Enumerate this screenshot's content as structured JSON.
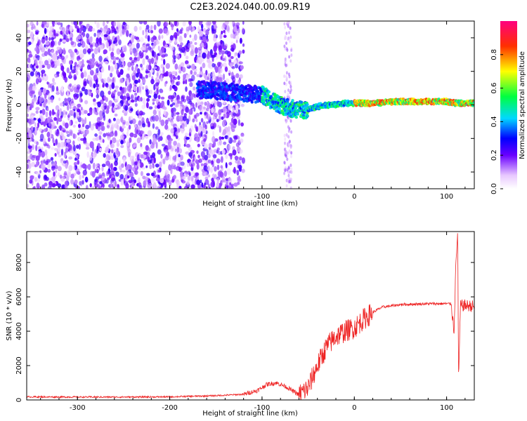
{
  "title": "C2E3.2024.040.00.09.R19",
  "colors": {
    "snr_line": "#ee2222",
    "axis": "#000000",
    "background": "#ffffff"
  },
  "chart_data": [
    {
      "type": "heatmap",
      "xlabel": "Height of straight line (km)",
      "ylabel": "Frequency (Hz)",
      "xlim": [
        -355,
        130
      ],
      "ylim": [
        -50,
        50
      ],
      "x_ticks": [
        -300,
        -200,
        -100,
        0,
        100
      ],
      "x_tick_labels": [
        "-300",
        "-200",
        "-100",
        "0",
        "100"
      ],
      "y_ticks": [
        -40,
        -20,
        0,
        20,
        40
      ],
      "y_tick_labels": [
        "-40",
        "-20",
        "0",
        "20",
        "40"
      ],
      "colorbar": {
        "label": "Normalized spectral amplitude",
        "range": [
          0,
          1
        ],
        "ticks": [
          0.0,
          0.2,
          0.4,
          0.6,
          0.8
        ],
        "tick_labels": [
          "0.0",
          "0.2",
          "0.4",
          "0.6",
          "0.8"
        ],
        "colormap": "rainbow"
      },
      "ridge": [
        {
          "x": -160,
          "y": 9
        },
        {
          "x": -140,
          "y": 8
        },
        {
          "x": -120,
          "y": 7
        },
        {
          "x": -100,
          "y": 6
        },
        {
          "x": -90,
          "y": 3
        },
        {
          "x": -80,
          "y": 0
        },
        {
          "x": -70,
          "y": -2
        },
        {
          "x": -60,
          "y": -3
        },
        {
          "x": -50,
          "y": -3
        },
        {
          "x": -40,
          "y": -1
        },
        {
          "x": -30,
          "y": 0
        },
        {
          "x": -20,
          "y": 0
        },
        {
          "x": -10,
          "y": 1
        },
        {
          "x": 0,
          "y": 1
        },
        {
          "x": 20,
          "y": 1
        },
        {
          "x": 50,
          "y": 2
        },
        {
          "x": 80,
          "y": 2
        },
        {
          "x": 100,
          "y": 2
        },
        {
          "x": 110,
          "y": 1
        },
        {
          "x": 130,
          "y": 1
        }
      ]
    },
    {
      "type": "line",
      "xlabel": "Height of straight line (km)",
      "ylabel": "SNR (10 * v/v)",
      "xlim": [
        -355,
        130
      ],
      "ylim": [
        0,
        9800
      ],
      "x_ticks": [
        -300,
        -200,
        -100,
        0,
        100
      ],
      "x_tick_labels": [
        "-300",
        "-200",
        "-100",
        "0",
        "100"
      ],
      "y_ticks": [
        0,
        2000,
        4000,
        6000,
        8000
      ],
      "y_tick_labels": [
        "0",
        "2000",
        "4000",
        "6000",
        "8000"
      ],
      "series": [
        {
          "color": "#ee2222",
          "points": [
            {
              "x": -355,
              "y": 180
            },
            {
              "x": -300,
              "y": 170
            },
            {
              "x": -250,
              "y": 170
            },
            {
              "x": -200,
              "y": 180
            },
            {
              "x": -150,
              "y": 250
            },
            {
              "x": -120,
              "y": 330
            },
            {
              "x": -105,
              "y": 550
            },
            {
              "x": -95,
              "y": 900
            },
            {
              "x": -85,
              "y": 1000
            },
            {
              "x": -75,
              "y": 800
            },
            {
              "x": -60,
              "y": 300
            },
            {
              "x": -50,
              "y": 700
            },
            {
              "x": -40,
              "y": 2000
            },
            {
              "x": -30,
              "y": 3100
            },
            {
              "x": -20,
              "y": 3700
            },
            {
              "x": -10,
              "y": 4000
            },
            {
              "x": 0,
              "y": 4200
            },
            {
              "x": 10,
              "y": 4700
            },
            {
              "x": 20,
              "y": 5100
            },
            {
              "x": 30,
              "y": 5400
            },
            {
              "x": 50,
              "y": 5550
            },
            {
              "x": 80,
              "y": 5600
            },
            {
              "x": 100,
              "y": 5600
            },
            {
              "x": 105,
              "y": 5600
            },
            {
              "x": 108,
              "y": 4000
            },
            {
              "x": 110,
              "y": 7800
            },
            {
              "x": 112,
              "y": 9800
            },
            {
              "x": 113,
              "y": 1200
            },
            {
              "x": 115,
              "y": 5500
            },
            {
              "x": 120,
              "y": 5500
            },
            {
              "x": 130,
              "y": 5450
            }
          ]
        }
      ]
    }
  ]
}
